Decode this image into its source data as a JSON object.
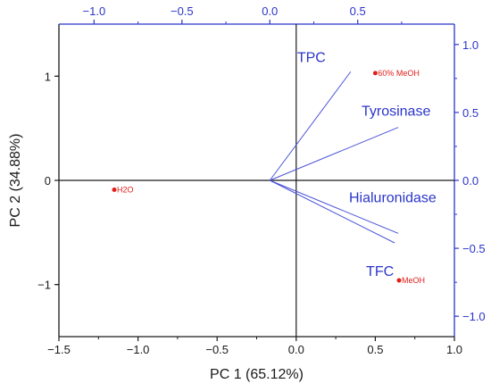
{
  "chart_data": {
    "type": "scatter",
    "subtype": "biplot",
    "xlabel": "PC 1 (65.12%)",
    "ylabel": "PC 2 (34.88%)",
    "xlim": [
      -1.5,
      1.0
    ],
    "ylim": [
      -1.5,
      1.5
    ],
    "xticks": [
      -1.5,
      -1.0,
      -0.5,
      0.0,
      0.5,
      1.0
    ],
    "yticks": [
      -1,
      0,
      1
    ],
    "top_axis": {
      "lim": [
        -1.2,
        1.05
      ],
      "ticks": [
        -1.0,
        -0.5,
        0.0,
        0.5
      ]
    },
    "right_axis": {
      "lim": [
        -1.15,
        1.15
      ],
      "ticks": [
        -1.0,
        -0.5,
        0.0,
        0.5,
        1.0
      ]
    },
    "observations": [
      {
        "label": "60% MeOH",
        "x": 0.5,
        "y": 1.03
      },
      {
        "label": "H2O",
        "x": -1.15,
        "y": -0.09
      },
      {
        "label": "MeOH",
        "x": 0.65,
        "y": -0.96
      }
    ],
    "loadings": [
      {
        "name": "TPC",
        "x": 0.46,
        "y": 0.8
      },
      {
        "name": "Tyrosinase",
        "x": 0.73,
        "y": 0.39
      },
      {
        "name": "Hialuronidase",
        "x": 0.73,
        "y": -0.39
      },
      {
        "name": "TFC",
        "x": 0.71,
        "y": -0.46
      }
    ],
    "colors": {
      "axis": "#1a1a1a",
      "secondary_axis": "#2b35c9",
      "points": "#e0201b",
      "vectors": "#4b54d6"
    }
  }
}
